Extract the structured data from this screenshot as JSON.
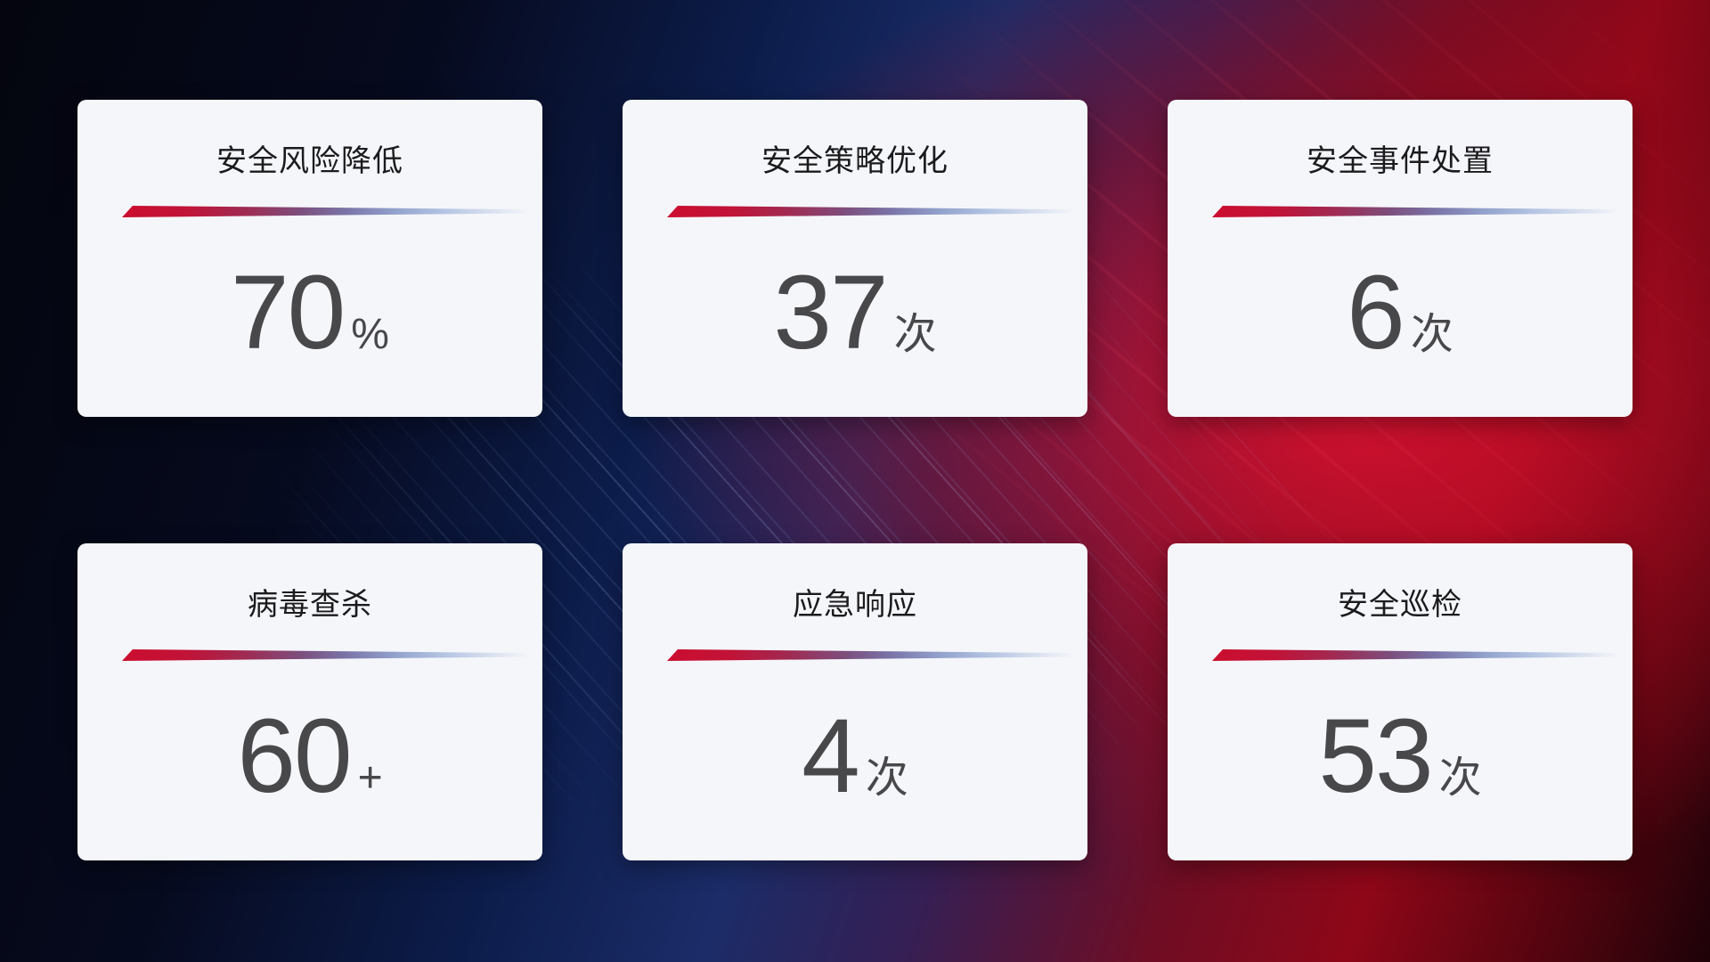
{
  "stats": [
    {
      "label": "安全风险降低",
      "value": "70",
      "unit": "%"
    },
    {
      "label": "安全策略优化",
      "value": "37",
      "unit": "次"
    },
    {
      "label": "安全事件处置",
      "value": "6",
      "unit": "次"
    },
    {
      "label": "病毒查杀",
      "value": "60",
      "unit": "+"
    },
    {
      "label": "应急响应",
      "value": "4",
      "unit": "次"
    },
    {
      "label": "安全巡检",
      "value": "53",
      "unit": "次"
    }
  ],
  "colors": {
    "card_background": "#f5f6fa",
    "title_text": "#1b1b1d",
    "value_text": "#48484b",
    "accent_line_red": "#cb0e2f",
    "accent_line_blue": "#b4c4e2",
    "background_navy": "#060a1e",
    "background_blue": "#1b2c68",
    "background_red": "#8e0718",
    "background_crimson_glow": "#e11232"
  }
}
